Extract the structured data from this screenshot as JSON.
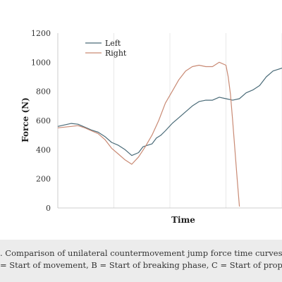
{
  "chart_data": {
    "type": "line",
    "title": "",
    "xlabel": "Time",
    "ylabel": "Force (N)",
    "ylim": [
      0,
      1200
    ],
    "xlim": [
      0,
      100
    ],
    "yticks": [
      0,
      200,
      400,
      600,
      800,
      1000,
      1200
    ],
    "ytick_labels": [
      "0",
      "200",
      "400",
      "600",
      "800",
      "1000",
      "1200"
    ],
    "grid": "vertical",
    "legend_position": "top-left",
    "series": [
      {
        "name": "Left",
        "color": "#4a6b78",
        "x": [
          0,
          3,
          6,
          9,
          12,
          15,
          18,
          21,
          24,
          27,
          30,
          33,
          36,
          38,
          40,
          42,
          44,
          46,
          48,
          51,
          54,
          57,
          60,
          63,
          66,
          69,
          72,
          75,
          78,
          81,
          84,
          87,
          90,
          93,
          96,
          100
        ],
        "y": [
          560,
          570,
          580,
          575,
          555,
          535,
          520,
          490,
          450,
          430,
          400,
          360,
          380,
          420,
          430,
          440,
          480,
          500,
          530,
          580,
          620,
          660,
          700,
          730,
          740,
          740,
          760,
          750,
          740,
          750,
          790,
          810,
          840,
          900,
          940,
          960
        ]
      },
      {
        "name": "Right",
        "color": "#c98a74",
        "x": [
          0,
          3,
          6,
          9,
          12,
          15,
          18,
          21,
          24,
          27,
          30,
          33,
          36,
          39,
          42,
          45,
          48,
          51,
          54,
          57,
          60,
          63,
          66,
          69,
          72,
          75,
          76,
          77,
          78,
          79,
          80,
          81
        ],
        "y": [
          550,
          555,
          560,
          565,
          550,
          530,
          510,
          470,
          410,
          370,
          330,
          300,
          350,
          420,
          500,
          600,
          720,
          800,
          880,
          940,
          970,
          980,
          970,
          970,
          1000,
          980,
          900,
          780,
          600,
          400,
          200,
          10
        ]
      }
    ]
  },
  "caption": {
    "line1": ". Comparison of unilateral countermovement jump force time curves (ac",
    "line2": "= Start of movement, B = Start of breaking phase, C = Start of propulsi"
  }
}
